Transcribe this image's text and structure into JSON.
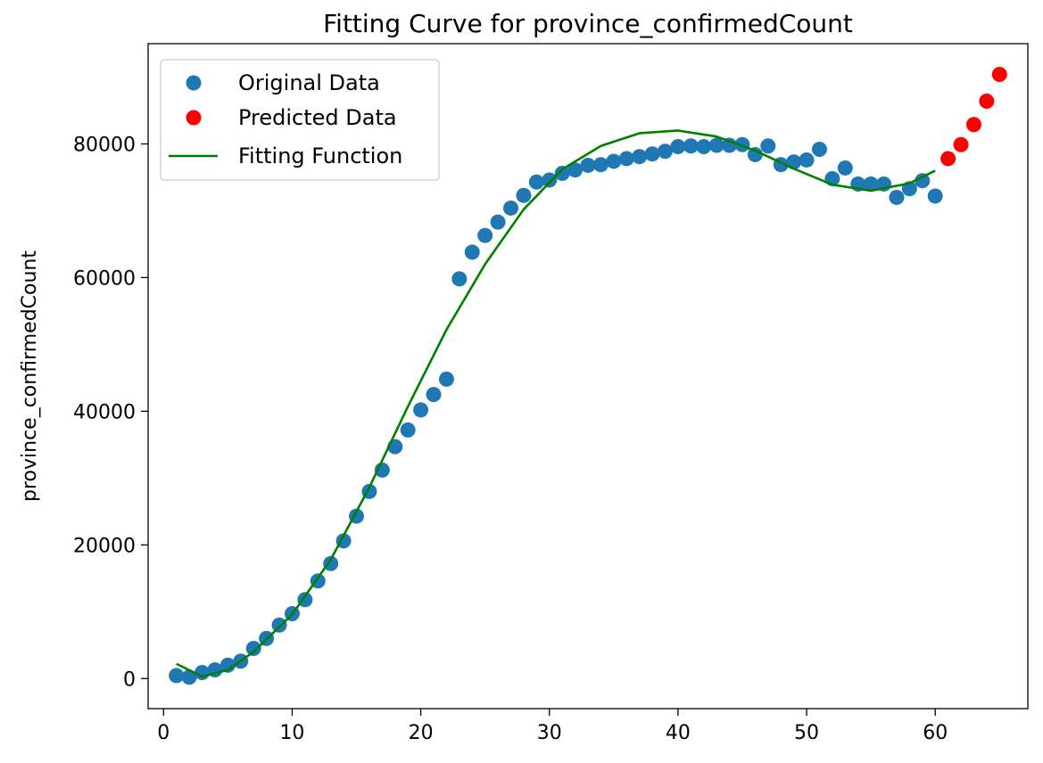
{
  "chart_data": {
    "type": "scatter",
    "title": "Fitting Curve for province_confirmedCount",
    "xlabel": "",
    "ylabel": "province_confirmedCount",
    "xlim": [
      -1.2,
      67.2
    ],
    "ylim": [
      -4500,
      95000
    ],
    "x_ticks": [
      0,
      10,
      20,
      30,
      40,
      50,
      60
    ],
    "y_ticks": [
      0,
      20000,
      40000,
      60000,
      80000
    ],
    "grid": false,
    "legend_position": "upper-left",
    "series": [
      {
        "name": "Original Data",
        "kind": "scatter",
        "color": "#1f77b4",
        "x": [
          1,
          2,
          3,
          4,
          5,
          6,
          7,
          8,
          9,
          10,
          11,
          12,
          13,
          14,
          15,
          16,
          17,
          18,
          19,
          20,
          21,
          22,
          23,
          24,
          25,
          26,
          27,
          28,
          29,
          30,
          31,
          32,
          33,
          34,
          35,
          36,
          37,
          38,
          39,
          40,
          41,
          42,
          43,
          44,
          45,
          46,
          47,
          48,
          49,
          50,
          51,
          52,
          53,
          54,
          55,
          56,
          57,
          58,
          59,
          60
        ],
        "y": [
          444,
          200,
          900,
          1300,
          2000,
          2600,
          4500,
          6000,
          8000,
          9700,
          11800,
          14600,
          17200,
          20600,
          24300,
          28000,
          31200,
          34700,
          37200,
          40200,
          42500,
          44800,
          59800,
          63800,
          66300,
          68300,
          70400,
          72300,
          74300,
          74600,
          75600,
          76100,
          76800,
          76900,
          77400,
          77800,
          78100,
          78500,
          78900,
          79600,
          79700,
          79600,
          79800,
          79800,
          79900,
          78400,
          79700,
          76900,
          77300,
          77600,
          79200,
          74800,
          76400,
          74000,
          74000,
          74000,
          72000,
          73300,
          74500,
          72200
        ]
      },
      {
        "name": "Predicted Data",
        "kind": "scatter",
        "color": "#ff0000",
        "x": [
          61,
          62,
          63,
          64,
          65
        ],
        "y": [
          77800,
          79900,
          82900,
          86400,
          90400
        ]
      },
      {
        "name": "Fitting Function",
        "kind": "line",
        "color": "#008000",
        "x": [
          1,
          3,
          5,
          7,
          10,
          13,
          16,
          19,
          22,
          25,
          28,
          31,
          34,
          37,
          40,
          43,
          46,
          49,
          52,
          55,
          58,
          60
        ],
        "y": [
          2200,
          300,
          1300,
          4000,
          9600,
          17800,
          28600,
          40700,
          52200,
          62000,
          70200,
          76200,
          79700,
          81600,
          82000,
          81100,
          79000,
          76300,
          73900,
          73000,
          74100,
          76000
        ]
      }
    ]
  }
}
